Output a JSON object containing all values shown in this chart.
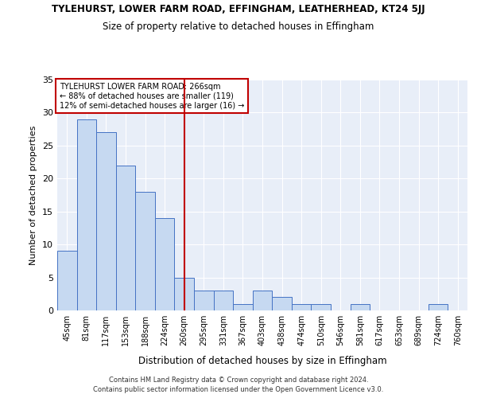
{
  "title": "TYLEHURST, LOWER FARM ROAD, EFFINGHAM, LEATHERHEAD, KT24 5JJ",
  "subtitle": "Size of property relative to detached houses in Effingham",
  "xlabel": "Distribution of detached houses by size in Effingham",
  "ylabel": "Number of detached properties",
  "categories": [
    "45sqm",
    "81sqm",
    "117sqm",
    "153sqm",
    "188sqm",
    "224sqm",
    "260sqm",
    "295sqm",
    "331sqm",
    "367sqm",
    "403sqm",
    "438sqm",
    "474sqm",
    "510sqm",
    "546sqm",
    "581sqm",
    "617sqm",
    "653sqm",
    "689sqm",
    "724sqm",
    "760sqm"
  ],
  "values": [
    9,
    29,
    27,
    22,
    18,
    14,
    5,
    3,
    3,
    1,
    3,
    2,
    1,
    1,
    0,
    1,
    0,
    0,
    0,
    1,
    0
  ],
  "bar_color": "#c6d9f1",
  "bar_edge_color": "#4472c4",
  "vline_x": 6,
  "vline_color": "#c00000",
  "annotation_lines": [
    "TYLEHURST LOWER FARM ROAD: 266sqm",
    "← 88% of detached houses are smaller (119)",
    "12% of semi-detached houses are larger (16) →"
  ],
  "annotation_box_color": "#c00000",
  "ylim": [
    0,
    35
  ],
  "yticks": [
    0,
    5,
    10,
    15,
    20,
    25,
    30,
    35
  ],
  "background_color": "#e8eef8",
  "footnote1": "Contains HM Land Registry data © Crown copyright and database right 2024.",
  "footnote2": "Contains public sector information licensed under the Open Government Licence v3.0."
}
